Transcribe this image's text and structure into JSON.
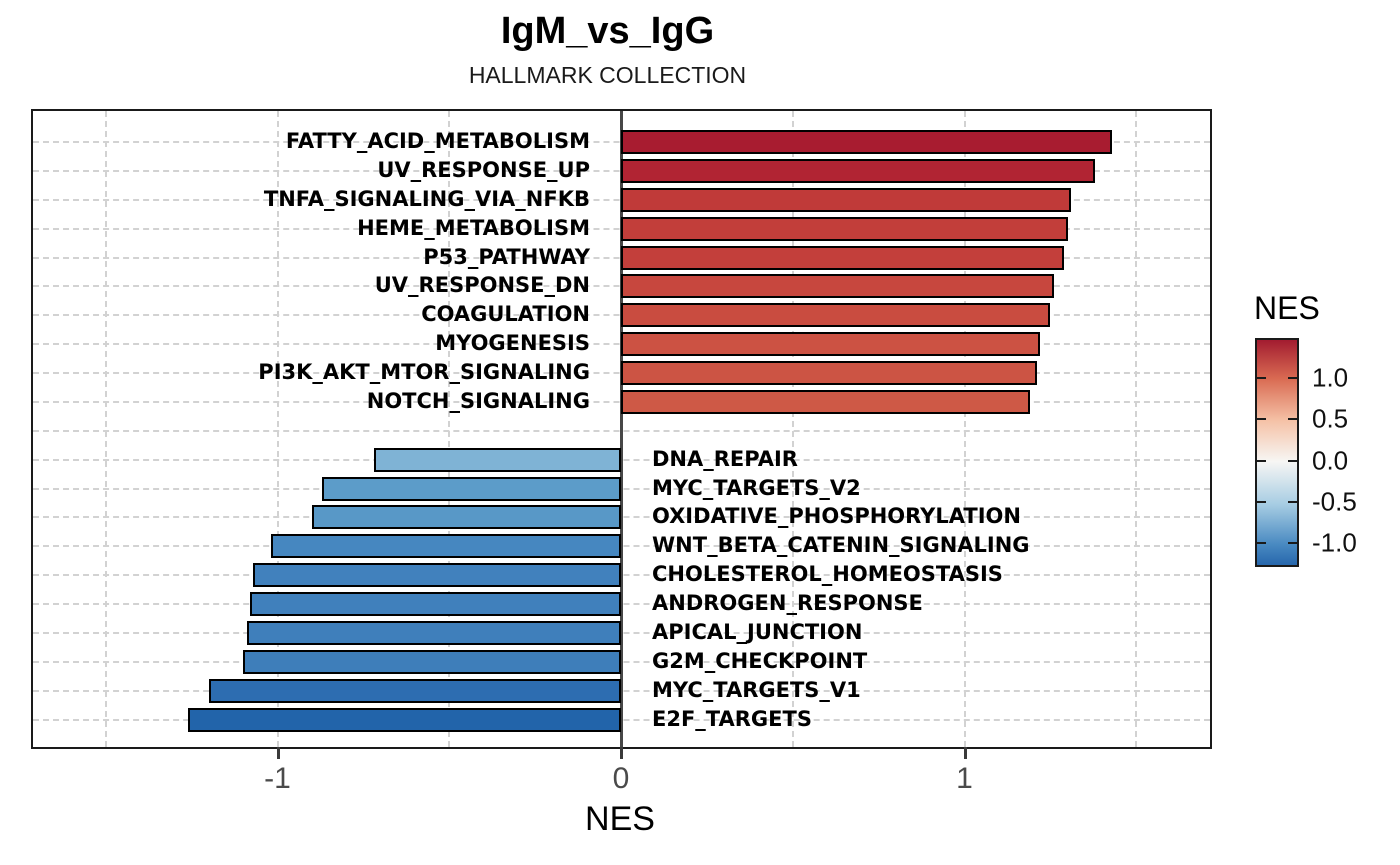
{
  "chart_data": {
    "type": "bar",
    "orientation": "horizontal",
    "title": "IgM_vs_IgG",
    "subtitle": "HALLMARK COLLECTION",
    "xlabel": "NES",
    "xlim": [
      -1.72,
      1.72
    ],
    "grid_on": true,
    "x_ticks": [
      {
        "value": -1,
        "label": "-1"
      },
      {
        "value": 0,
        "label": "0"
      },
      {
        "value": 1,
        "label": "1"
      }
    ],
    "grid_x": [
      -1.5,
      -1,
      -0.5,
      0.5,
      1,
      1.5
    ],
    "bars": [
      {
        "label": "FATTY_ACID_METABOLISM",
        "value": 1.43,
        "color": "#a81c30"
      },
      {
        "label": "UV_RESPONSE_UP",
        "value": 1.38,
        "color": "#b12433"
      },
      {
        "label": "TNFA_SIGNALING_VIA_NFKB",
        "value": 1.31,
        "color": "#c03a39"
      },
      {
        "label": "HEME_METABOLISM",
        "value": 1.3,
        "color": "#c23e3a"
      },
      {
        "label": "P53_PATHWAY",
        "value": 1.29,
        "color": "#c33f3b"
      },
      {
        "label": "UV_RESPONSE_DN",
        "value": 1.26,
        "color": "#c7473e"
      },
      {
        "label": "COAGULATION",
        "value": 1.25,
        "color": "#c94c40"
      },
      {
        "label": "MYOGENESIS",
        "value": 1.22,
        "color": "#cc5243"
      },
      {
        "label": "PI3K_AKT_MTOR_SIGNALING",
        "value": 1.21,
        "color": "#cc5444"
      },
      {
        "label": "NOTCH_SIGNALING",
        "value": 1.19,
        "color": "#ce5946"
      },
      {
        "label": "DNA_REPAIR",
        "value": -0.72,
        "color": "#7fb3d5"
      },
      {
        "label": "MYC_TARGETS_V2",
        "value": -0.87,
        "color": "#5c9cc9"
      },
      {
        "label": "OXIDATIVE_PHOSPHORYLATION",
        "value": -0.9,
        "color": "#5898c7"
      },
      {
        "label": "WNT_BETA_CATENIN_SIGNALING",
        "value": -1.02,
        "color": "#4687c0"
      },
      {
        "label": "CHOLESTEROL_HOMEOSTASIS",
        "value": -1.07,
        "color": "#4181bd"
      },
      {
        "label": "ANDROGEN_RESPONSE",
        "value": -1.08,
        "color": "#4080bc"
      },
      {
        "label": "APICAL_JUNCTION",
        "value": -1.09,
        "color": "#3f7fbb"
      },
      {
        "label": "G2M_CHECKPOINT",
        "value": -1.1,
        "color": "#3e7eba"
      },
      {
        "label": "MYC_TARGETS_V1",
        "value": -1.2,
        "color": "#2d6db1"
      },
      {
        "label": "E2F_TARGETS",
        "value": -1.26,
        "color": "#2264aa"
      }
    ],
    "legend": {
      "title": "NES",
      "position": "right",
      "domain": [
        -1.26,
        1.46
      ],
      "ticks": [
        {
          "value": 1.0,
          "label": "1.0"
        },
        {
          "value": 0.5,
          "label": "0.5"
        },
        {
          "value": 0.0,
          "label": "0.0"
        },
        {
          "value": -0.5,
          "label": "-0.5"
        },
        {
          "value": -1.0,
          "label": "-1.0"
        }
      ],
      "gradient": [
        {
          "pos": 0.0,
          "color": "#a21c30"
        },
        {
          "pos": 0.17,
          "color": "#d96a52"
        },
        {
          "pos": 0.36,
          "color": "#f5c2a7"
        },
        {
          "pos": 0.54,
          "color": "#f7f6f4"
        },
        {
          "pos": 0.73,
          "color": "#a7cde3"
        },
        {
          "pos": 0.91,
          "color": "#4889c1"
        },
        {
          "pos": 1.0,
          "color": "#2767ad"
        }
      ]
    },
    "colors": {
      "grid": "#d2d2d2",
      "zero_line": "#474747",
      "bar_border": "#000000",
      "axis_text": "#4a4a4a",
      "panel_border": "#1a1a1a"
    }
  }
}
